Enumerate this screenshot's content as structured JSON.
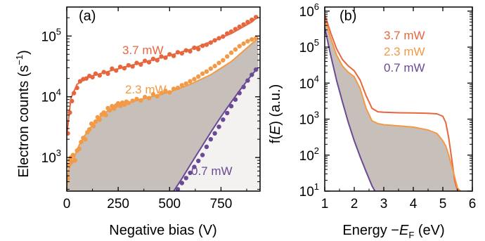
{
  "chart_data": [
    {
      "type": "scatter",
      "panel_label": "(a)",
      "xlabel": "Negative bias (V)",
      "ylabel": "Electron counts (s",
      "ylabel_sup": "−1",
      "ylabel_close": ")",
      "xlim": [
        0,
        940
      ],
      "ylim": [
        280,
        300000
      ],
      "yscale": "log",
      "xticks": [
        0,
        250,
        500,
        750
      ],
      "xtick_labels": [
        "0",
        "250",
        "500",
        "750"
      ],
      "yticks": [
        1000,
        10000,
        100000
      ],
      "ytick_base": "10",
      "ytick_exponents": [
        "3",
        "4",
        "5"
      ],
      "grid": false,
      "colors": {
        "3.7 mW": "#e8663e",
        "2.3 mW": "#f29a46",
        "0.7 mW": "#6a4a94",
        "shade": "#c7bfba"
      },
      "series": [
        {
          "name": "3.7 mW",
          "fit": [
            [
              0,
              2300
            ],
            [
              20,
              9500
            ],
            [
              50,
              16000
            ],
            [
              100,
              21000
            ],
            [
              200,
              26000
            ],
            [
              300,
              32000
            ],
            [
              400,
              39000
            ],
            [
              500,
              48000
            ],
            [
              600,
              60000
            ],
            [
              700,
              80000
            ],
            [
              800,
              110000
            ],
            [
              900,
              170000
            ],
            [
              930,
              210000
            ]
          ],
          "points": [
            [
              5,
              2500
            ],
            [
              15,
              5500
            ],
            [
              25,
              8500
            ],
            [
              35,
              11500
            ],
            [
              50,
              14000
            ],
            [
              65,
              18000
            ],
            [
              80,
              19500
            ],
            [
              95,
              20000
            ],
            [
              110,
              22000
            ],
            [
              125,
              21000
            ],
            [
              140,
              24000
            ],
            [
              160,
              22500
            ],
            [
              180,
              25500
            ],
            [
              200,
              24000
            ],
            [
              220,
              29000
            ],
            [
              240,
              27000
            ],
            [
              260,
              31000
            ],
            [
              280,
              29500
            ],
            [
              300,
              33000
            ],
            [
              320,
              31500
            ],
            [
              340,
              36000
            ],
            [
              360,
              34000
            ],
            [
              380,
              39000
            ],
            [
              400,
              37000
            ],
            [
              420,
              42000
            ],
            [
              440,
              40000
            ],
            [
              460,
              46000
            ],
            [
              480,
              44000
            ],
            [
              500,
              50000
            ],
            [
              520,
              47000
            ],
            [
              540,
              54000
            ],
            [
              560,
              52000
            ],
            [
              580,
              58000
            ],
            [
              600,
              56000
            ],
            [
              620,
              64000
            ],
            [
              640,
              61000
            ],
            [
              660,
              69000
            ],
            [
              680,
              72000
            ],
            [
              700,
              78000
            ],
            [
              720,
              85000
            ],
            [
              740,
              92000
            ],
            [
              760,
              98000
            ],
            [
              780,
              110000
            ],
            [
              800,
              118000
            ],
            [
              820,
              130000
            ],
            [
              840,
              142000
            ],
            [
              860,
              155000
            ],
            [
              880,
              170000
            ],
            [
              900,
              185000
            ],
            [
              920,
              205000
            ]
          ]
        },
        {
          "name": "2.3 mW",
          "fit": [
            [
              0,
              320
            ],
            [
              10,
              650
            ],
            [
              30,
              900
            ],
            [
              60,
              1600
            ],
            [
              100,
              2700
            ],
            [
              150,
              4300
            ],
            [
              200,
              5900
            ],
            [
              250,
              7000
            ],
            [
              300,
              8000
            ],
            [
              400,
              9800
            ],
            [
              500,
              12000
            ],
            [
              600,
              16000
            ],
            [
              700,
              23000
            ],
            [
              800,
              38000
            ],
            [
              900,
              75000
            ],
            [
              930,
              92000
            ]
          ],
          "points": [
            [
              5,
              450
            ],
            [
              10,
              750
            ],
            [
              15,
              900
            ],
            [
              20,
              1000
            ],
            [
              25,
              850
            ],
            [
              30,
              1100
            ],
            [
              40,
              900
            ],
            [
              50,
              1300
            ],
            [
              60,
              1400
            ],
            [
              70,
              1800
            ],
            [
              80,
              2100
            ],
            [
              90,
              2000
            ],
            [
              100,
              2600
            ],
            [
              110,
              2900
            ],
            [
              120,
              3600
            ],
            [
              130,
              3300
            ],
            [
              140,
              3900
            ],
            [
              150,
              4600
            ],
            [
              160,
              4200
            ],
            [
              170,
              5100
            ],
            [
              180,
              5500
            ],
            [
              190,
              5000
            ],
            [
              200,
              6500
            ],
            [
              210,
              6000
            ],
            [
              220,
              7000
            ],
            [
              230,
              6400
            ],
            [
              240,
              7200
            ],
            [
              250,
              7800
            ],
            [
              260,
              7100
            ],
            [
              270,
              8000
            ],
            [
              280,
              7400
            ],
            [
              290,
              8300
            ],
            [
              300,
              7900
            ],
            [
              320,
              8600
            ],
            [
              340,
              9200
            ],
            [
              360,
              8700
            ],
            [
              380,
              9900
            ],
            [
              400,
              9500
            ],
            [
              420,
              11000
            ],
            [
              440,
              10200
            ],
            [
              460,
              11500
            ],
            [
              480,
              12500
            ],
            [
              500,
              11800
            ],
            [
              520,
              13500
            ],
            [
              540,
              14000
            ],
            [
              560,
              15500
            ],
            [
              580,
              16500
            ],
            [
              600,
              18000
            ],
            [
              620,
              19500
            ],
            [
              640,
              21500
            ],
            [
              660,
              24000
            ],
            [
              680,
              26000
            ],
            [
              700,
              29000
            ],
            [
              720,
              32000
            ],
            [
              740,
              36000
            ],
            [
              760,
              40000
            ],
            [
              780,
              46000
            ],
            [
              800,
              53000
            ],
            [
              820,
              60000
            ],
            [
              840,
              68000
            ],
            [
              860,
              75000
            ],
            [
              880,
              82000
            ],
            [
              900,
              88000
            ],
            [
              920,
              92000
            ]
          ]
        },
        {
          "name": "0.7 mW",
          "fit": [
            [
              520,
              280
            ],
            [
              560,
              450
            ],
            [
              600,
              750
            ],
            [
              650,
              1400
            ],
            [
              700,
              2600
            ],
            [
              750,
              4700
            ],
            [
              800,
              8200
            ],
            [
              850,
              14000
            ],
            [
              900,
              23000
            ],
            [
              930,
              30000
            ]
          ],
          "points": [
            [
              540,
              300
            ],
            [
              560,
              380
            ],
            [
              580,
              460
            ],
            [
              600,
              560
            ],
            [
              620,
              700
            ],
            [
              640,
              880
            ],
            [
              660,
              1100
            ],
            [
              680,
              1500
            ],
            [
              700,
              2000
            ],
            [
              720,
              2500
            ],
            [
              740,
              3200
            ],
            [
              760,
              4200
            ],
            [
              780,
              5400
            ],
            [
              800,
              7000
            ],
            [
              820,
              9000
            ],
            [
              840,
              11500
            ],
            [
              860,
              14500
            ],
            [
              880,
              18500
            ],
            [
              900,
              23000
            ],
            [
              920,
              28000
            ]
          ]
        }
      ]
    },
    {
      "type": "line",
      "panel_label": "(b)",
      "xlabel_prefix": "Energy −",
      "xlabel_var": "E",
      "xlabel_sub": "F",
      "xlabel_unit": " (eV)",
      "ylabel_prefix": "f(",
      "ylabel_var": "E",
      "ylabel_suffix": ") (a.u.)",
      "xlim": [
        1,
        6
      ],
      "ylim": [
        10,
        1300000
      ],
      "yscale": "log",
      "xticks": [
        1,
        2,
        3,
        4,
        5,
        6
      ],
      "xtick_labels": [
        "1",
        "2",
        "3",
        "4",
        "5",
        "6"
      ],
      "yticks": [
        10,
        100,
        1000,
        10000,
        100000,
        1000000
      ],
      "ytick_base": "10",
      "ytick_exponents": [
        "1",
        "2",
        "3",
        "4",
        "5",
        "6"
      ],
      "grid": false,
      "legend": "top-right",
      "colors": {
        "3.7 mW": "#e8663e",
        "2.3 mW": "#f29a46",
        "0.7 mW": "#6a4a94",
        "shade": "#c7bfba"
      },
      "series": [
        {
          "name": "3.7 mW",
          "x": [
            1,
            1.2,
            1.4,
            1.6,
            1.8,
            2.0,
            2.2,
            2.4,
            2.6,
            2.8,
            3.0,
            3.5,
            4.0,
            4.5,
            4.8,
            5.0,
            5.1,
            5.2,
            5.3,
            5.4,
            5.5
          ],
          "y": [
            800000,
            250000,
            90000,
            45000,
            30000,
            22000,
            12000,
            4500,
            2000,
            1600,
            1550,
            1500,
            1480,
            1450,
            1400,
            1200,
            800,
            300,
            80,
            20,
            10
          ]
        },
        {
          "name": "2.3 mW",
          "x": [
            1,
            1.2,
            1.4,
            1.6,
            1.8,
            2.0,
            2.2,
            2.4,
            2.6,
            2.8,
            3.0,
            3.5,
            4.0,
            4.5,
            4.8,
            5.0,
            5.1,
            5.2,
            5.3,
            5.4,
            5.5,
            5.6
          ],
          "y": [
            600000,
            180000,
            60000,
            30000,
            20000,
            15000,
            7000,
            2000,
            900,
            750,
            700,
            650,
            600,
            500,
            400,
            250,
            180,
            100,
            50,
            25,
            12,
            10
          ]
        },
        {
          "name": "0.7 mW",
          "x": [
            1,
            1.2,
            1.4,
            1.6,
            1.8,
            2.0,
            2.2,
            2.4,
            2.6,
            2.7
          ],
          "y": [
            350000,
            60000,
            12000,
            3000,
            800,
            250,
            90,
            35,
            14,
            10
          ]
        }
      ]
    }
  ]
}
